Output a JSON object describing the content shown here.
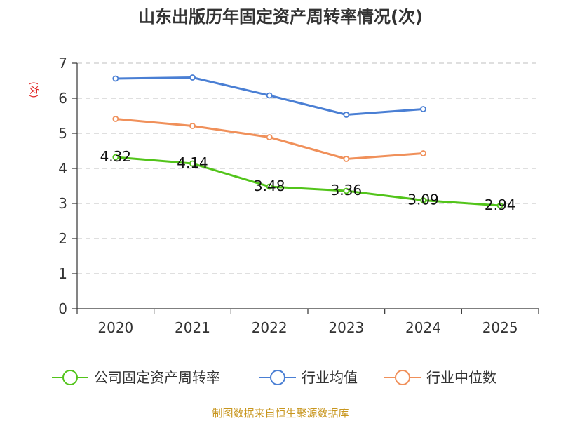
{
  "chart_data": {
    "type": "line",
    "title": "山东出版历年固定资产周转率情况(次)",
    "ylabel": "(次)",
    "xlabel": "",
    "categories": [
      "2020",
      "2021",
      "2022",
      "2023",
      "2024",
      "2025"
    ],
    "ylim": [
      0,
      7
    ],
    "yticks": [
      "0",
      "1",
      "2",
      "3",
      "4",
      "5",
      "6",
      "7"
    ],
    "grid": true,
    "legend_position": "bottom",
    "series": [
      {
        "name": "公司固定资产周转率",
        "color": "#52c41a",
        "values": [
          4.32,
          4.14,
          3.48,
          3.36,
          3.09,
          2.94
        ],
        "labels": [
          "4.32",
          "4.14",
          "3.48",
          "3.36",
          "3.09",
          "2.94"
        ]
      },
      {
        "name": "行业均值",
        "color": "#4a7fd4",
        "values": [
          6.56,
          6.59,
          6.08,
          5.53,
          5.69,
          null
        ]
      },
      {
        "name": "行业中位数",
        "color": "#f0905a",
        "values": [
          5.41,
          5.21,
          4.89,
          4.27,
          4.43,
          null
        ]
      }
    ],
    "source": "制图数据来自恒生聚源数据库"
  }
}
